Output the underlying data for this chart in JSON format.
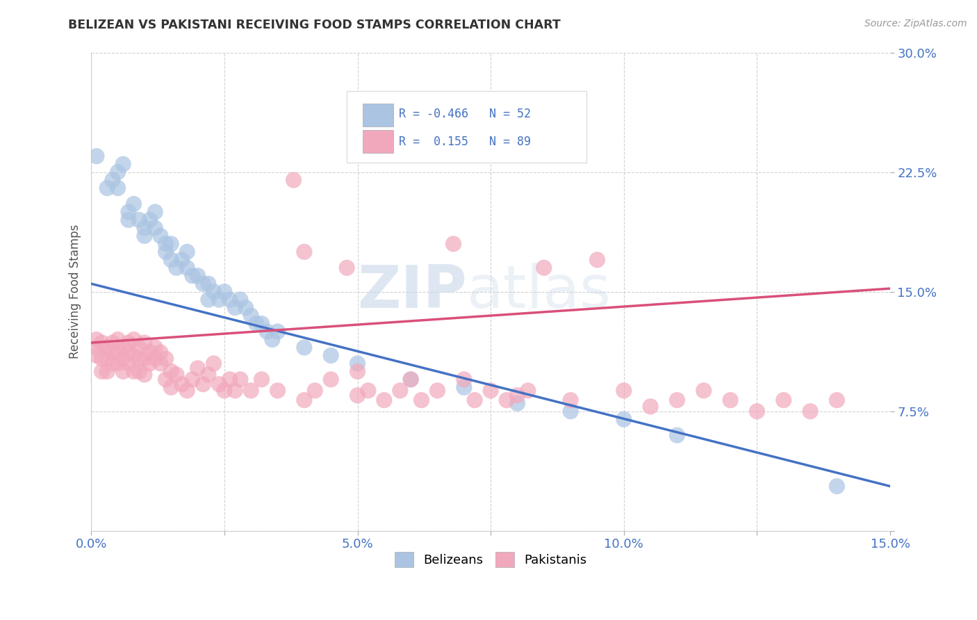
{
  "title": "BELIZEAN VS PAKISTANI RECEIVING FOOD STAMPS CORRELATION CHART",
  "source": "Source: ZipAtlas.com",
  "ylabel": "Receiving Food Stamps",
  "xlim": [
    0.0,
    0.15
  ],
  "ylim": [
    0.0,
    0.3
  ],
  "xticks": [
    0.0,
    0.025,
    0.05,
    0.075,
    0.1,
    0.125,
    0.15
  ],
  "xtick_labels": [
    "0.0%",
    "",
    "5.0%",
    "",
    "10.0%",
    "",
    "15.0%"
  ],
  "yticks": [
    0.0,
    0.075,
    0.15,
    0.225,
    0.3
  ],
  "ytick_labels_right": [
    "",
    "7.5%",
    "15.0%",
    "22.5%",
    "30.0%"
  ],
  "belizean_color": "#aac4e2",
  "pakistani_color": "#f2a8bc",
  "belizean_line_color": "#4472c4",
  "pakistani_line_color": "#d9507a",
  "belizean_R": -0.466,
  "belizean_N": 52,
  "pakistani_R": 0.155,
  "pakistani_N": 89,
  "legend_label_1": "Belizeans",
  "legend_label_2": "Pakistanis",
  "watermark_zip": "ZIP",
  "watermark_atlas": "atlas",
  "background_color": "#ffffff",
  "grid_color": "#cccccc",
  "title_color": "#333333",
  "axis_label_color": "#4472c4",
  "bel_line_x0": 0.0,
  "bel_line_y0": 0.155,
  "bel_line_x1": 0.15,
  "bel_line_y1": 0.028,
  "pak_line_x0": 0.0,
  "pak_line_y0": 0.118,
  "pak_line_x1": 0.15,
  "pak_line_y1": 0.152,
  "belizean_scatter": [
    [
      0.001,
      0.235
    ],
    [
      0.003,
      0.215
    ],
    [
      0.004,
      0.22
    ],
    [
      0.005,
      0.225
    ],
    [
      0.005,
      0.215
    ],
    [
      0.006,
      0.23
    ],
    [
      0.007,
      0.2
    ],
    [
      0.007,
      0.195
    ],
    [
      0.008,
      0.205
    ],
    [
      0.009,
      0.195
    ],
    [
      0.01,
      0.19
    ],
    [
      0.01,
      0.185
    ],
    [
      0.011,
      0.195
    ],
    [
      0.012,
      0.19
    ],
    [
      0.012,
      0.2
    ],
    [
      0.013,
      0.185
    ],
    [
      0.014,
      0.18
    ],
    [
      0.014,
      0.175
    ],
    [
      0.015,
      0.18
    ],
    [
      0.015,
      0.17
    ],
    [
      0.016,
      0.165
    ],
    [
      0.017,
      0.17
    ],
    [
      0.018,
      0.165
    ],
    [
      0.018,
      0.175
    ],
    [
      0.019,
      0.16
    ],
    [
      0.02,
      0.16
    ],
    [
      0.021,
      0.155
    ],
    [
      0.022,
      0.155
    ],
    [
      0.022,
      0.145
    ],
    [
      0.023,
      0.15
    ],
    [
      0.024,
      0.145
    ],
    [
      0.025,
      0.15
    ],
    [
      0.026,
      0.145
    ],
    [
      0.027,
      0.14
    ],
    [
      0.028,
      0.145
    ],
    [
      0.029,
      0.14
    ],
    [
      0.03,
      0.135
    ],
    [
      0.031,
      0.13
    ],
    [
      0.032,
      0.13
    ],
    [
      0.033,
      0.125
    ],
    [
      0.034,
      0.12
    ],
    [
      0.035,
      0.125
    ],
    [
      0.04,
      0.115
    ],
    [
      0.045,
      0.11
    ],
    [
      0.05,
      0.105
    ],
    [
      0.06,
      0.095
    ],
    [
      0.07,
      0.09
    ],
    [
      0.08,
      0.08
    ],
    [
      0.09,
      0.075
    ],
    [
      0.1,
      0.07
    ],
    [
      0.11,
      0.06
    ],
    [
      0.14,
      0.028
    ]
  ],
  "pakistani_scatter": [
    [
      0.001,
      0.12
    ],
    [
      0.001,
      0.115
    ],
    [
      0.001,
      0.11
    ],
    [
      0.002,
      0.118
    ],
    [
      0.002,
      0.108
    ],
    [
      0.002,
      0.1
    ],
    [
      0.003,
      0.115
    ],
    [
      0.003,
      0.108
    ],
    [
      0.003,
      0.1
    ],
    [
      0.004,
      0.112
    ],
    [
      0.004,
      0.105
    ],
    [
      0.004,
      0.118
    ],
    [
      0.005,
      0.12
    ],
    [
      0.005,
      0.112
    ],
    [
      0.005,
      0.105
    ],
    [
      0.006,
      0.115
    ],
    [
      0.006,
      0.108
    ],
    [
      0.006,
      0.1
    ],
    [
      0.007,
      0.112
    ],
    [
      0.007,
      0.105
    ],
    [
      0.007,
      0.118
    ],
    [
      0.008,
      0.11
    ],
    [
      0.008,
      0.12
    ],
    [
      0.008,
      0.1
    ],
    [
      0.009,
      0.115
    ],
    [
      0.009,
      0.108
    ],
    [
      0.009,
      0.1
    ],
    [
      0.01,
      0.118
    ],
    [
      0.01,
      0.108
    ],
    [
      0.01,
      0.098
    ],
    [
      0.011,
      0.112
    ],
    [
      0.011,
      0.105
    ],
    [
      0.012,
      0.115
    ],
    [
      0.012,
      0.108
    ],
    [
      0.013,
      0.112
    ],
    [
      0.013,
      0.105
    ],
    [
      0.014,
      0.095
    ],
    [
      0.014,
      0.108
    ],
    [
      0.015,
      0.1
    ],
    [
      0.015,
      0.09
    ],
    [
      0.016,
      0.098
    ],
    [
      0.017,
      0.092
    ],
    [
      0.018,
      0.088
    ],
    [
      0.019,
      0.095
    ],
    [
      0.02,
      0.102
    ],
    [
      0.021,
      0.092
    ],
    [
      0.022,
      0.098
    ],
    [
      0.023,
      0.105
    ],
    [
      0.024,
      0.092
    ],
    [
      0.025,
      0.088
    ],
    [
      0.026,
      0.095
    ],
    [
      0.027,
      0.088
    ],
    [
      0.028,
      0.095
    ],
    [
      0.03,
      0.088
    ],
    [
      0.032,
      0.095
    ],
    [
      0.035,
      0.088
    ],
    [
      0.038,
      0.22
    ],
    [
      0.04,
      0.175
    ],
    [
      0.04,
      0.082
    ],
    [
      0.042,
      0.088
    ],
    [
      0.045,
      0.095
    ],
    [
      0.048,
      0.165
    ],
    [
      0.05,
      0.085
    ],
    [
      0.05,
      0.1
    ],
    [
      0.052,
      0.088
    ],
    [
      0.055,
      0.082
    ],
    [
      0.058,
      0.088
    ],
    [
      0.06,
      0.095
    ],
    [
      0.062,
      0.082
    ],
    [
      0.065,
      0.088
    ],
    [
      0.068,
      0.18
    ],
    [
      0.07,
      0.095
    ],
    [
      0.072,
      0.082
    ],
    [
      0.075,
      0.088
    ],
    [
      0.078,
      0.082
    ],
    [
      0.08,
      0.085
    ],
    [
      0.082,
      0.088
    ],
    [
      0.085,
      0.165
    ],
    [
      0.09,
      0.082
    ],
    [
      0.095,
      0.17
    ],
    [
      0.1,
      0.088
    ],
    [
      0.105,
      0.078
    ],
    [
      0.11,
      0.082
    ],
    [
      0.115,
      0.088
    ],
    [
      0.12,
      0.082
    ],
    [
      0.125,
      0.075
    ],
    [
      0.13,
      0.082
    ],
    [
      0.135,
      0.075
    ],
    [
      0.14,
      0.082
    ]
  ]
}
